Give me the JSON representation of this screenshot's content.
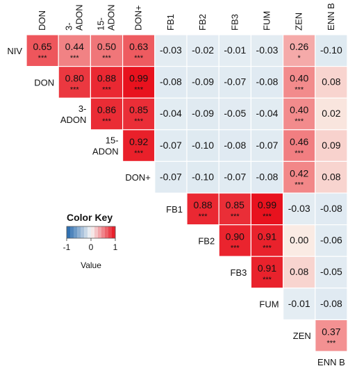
{
  "chart_data": {
    "type": "heatmap",
    "columns": [
      "DON",
      "3-ADON",
      "15-ADON",
      "DON+",
      "FB1",
      "FB2",
      "FB3",
      "FUM",
      "ZEN",
      "ENN B"
    ],
    "rows": [
      "NIV",
      "DON",
      "3-ADON",
      "15-ADON",
      "DON+",
      "FB1",
      "FB2",
      "FB3",
      "FUM",
      "ZEN",
      "ENN B"
    ],
    "cells": [
      [
        {
          "v": "0.65",
          "s": "***"
        },
        {
          "v": "0.44",
          "s": "***"
        },
        {
          "v": "0.50",
          "s": "***"
        },
        {
          "v": "0.63",
          "s": "***"
        },
        {
          "v": "-0.03",
          "s": ""
        },
        {
          "v": "-0.02",
          "s": ""
        },
        {
          "v": "-0.01",
          "s": ""
        },
        {
          "v": "-0.03",
          "s": ""
        },
        {
          "v": "0.26",
          "s": "*"
        },
        {
          "v": "-0.10",
          "s": ""
        }
      ],
      [
        {
          "v": "0.80",
          "s": "***"
        },
        {
          "v": "0.88",
          "s": "***"
        },
        {
          "v": "0.99",
          "s": "***"
        },
        {
          "v": "-0.08",
          "s": ""
        },
        {
          "v": "-0.09",
          "s": ""
        },
        {
          "v": "-0.07",
          "s": ""
        },
        {
          "v": "-0.08",
          "s": ""
        },
        {
          "v": "0.40",
          "s": "***"
        },
        {
          "v": "0.08",
          "s": ""
        }
      ],
      [
        {
          "v": "0.86",
          "s": "***"
        },
        {
          "v": "0.85",
          "s": "***"
        },
        {
          "v": "-0.04",
          "s": ""
        },
        {
          "v": "-0.09",
          "s": ""
        },
        {
          "v": "-0.05",
          "s": ""
        },
        {
          "v": "-0.04",
          "s": ""
        },
        {
          "v": "0.40",
          "s": "***"
        },
        {
          "v": "0.02",
          "s": ""
        }
      ],
      [
        {
          "v": "0.92",
          "s": "***"
        },
        {
          "v": "-0.07",
          "s": ""
        },
        {
          "v": "-0.10",
          "s": ""
        },
        {
          "v": "-0.08",
          "s": ""
        },
        {
          "v": "-0.07",
          "s": ""
        },
        {
          "v": "0.46",
          "s": "***"
        },
        {
          "v": "0.09",
          "s": ""
        }
      ],
      [
        {
          "v": "-0.07",
          "s": ""
        },
        {
          "v": "-0.10",
          "s": ""
        },
        {
          "v": "-0.07",
          "s": ""
        },
        {
          "v": "-0.08",
          "s": ""
        },
        {
          "v": "0.42",
          "s": "***"
        },
        {
          "v": "0.08",
          "s": ""
        }
      ],
      [
        {
          "v": "0.88",
          "s": "***"
        },
        {
          "v": "0.85",
          "s": "***"
        },
        {
          "v": "0.99",
          "s": "***"
        },
        {
          "v": "-0.03",
          "s": ""
        },
        {
          "v": "-0.08",
          "s": ""
        }
      ],
      [
        {
          "v": "0.90",
          "s": "***"
        },
        {
          "v": "0.91",
          "s": "***"
        },
        {
          "v": "0.00",
          "s": ""
        },
        {
          "v": "-0.06",
          "s": ""
        }
      ],
      [
        {
          "v": "0.91",
          "s": "***"
        },
        {
          "v": "0.08",
          "s": ""
        },
        {
          "v": "-0.05",
          "s": ""
        }
      ],
      [
        {
          "v": "-0.01",
          "s": ""
        },
        {
          "v": "-0.08",
          "s": ""
        }
      ],
      [
        {
          "v": "0.37",
          "s": "***"
        }
      ],
      []
    ],
    "color_scale": {
      "min": -1,
      "max": 1,
      "low_color": "#2166ac",
      "mid_color": "#f7f7f7",
      "high_color": "#e8101c"
    },
    "color_key": {
      "title": "Color Key",
      "ticks": [
        "-1",
        "0",
        "1"
      ],
      "label": "Value"
    }
  }
}
